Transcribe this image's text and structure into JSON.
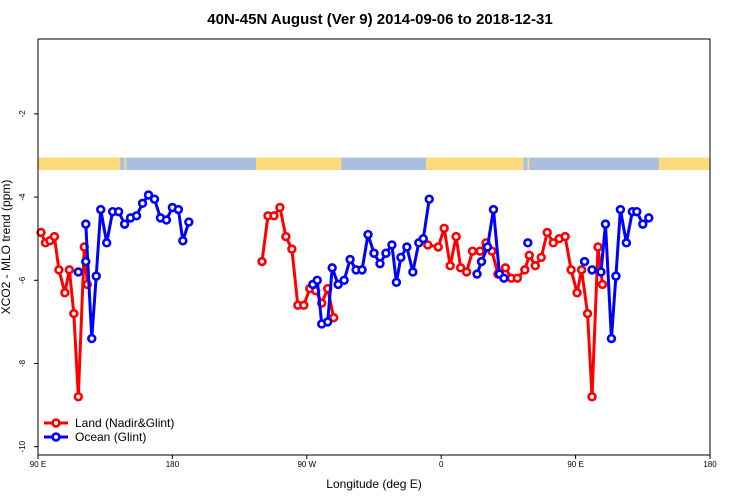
{
  "chart_data": {
    "type": "line",
    "title": "40N-45N August (Ver 9)   2014-09-06 to 2018-12-31",
    "xlabel": "Longitude (deg E)",
    "ylabel": "XCO2 - MLO trend (ppm)",
    "xlim": [
      0,
      450
    ],
    "ylim": [
      -10.2,
      -0.2
    ],
    "x_ticks": [
      {
        "value": 0,
        "label": "90 E"
      },
      {
        "value": 90,
        "label": "180"
      },
      {
        "value": 180,
        "label": "90 W"
      },
      {
        "value": 270,
        "label": "0"
      },
      {
        "value": 360,
        "label": "90 E"
      },
      {
        "value": 450,
        "label": "180"
      }
    ],
    "y_ticks": [
      -10,
      -8,
      -6,
      -4,
      -2
    ],
    "grid": false,
    "legend_position": "bottom-left",
    "land_mask_band": {
      "y_range": [
        -3.35,
        -3.05
      ],
      "land_color": "#ffd97a",
      "ocean_color": "#a9bfdd",
      "segments": [
        {
          "x0": 0,
          "x1": 55,
          "type": "land"
        },
        {
          "x0": 55,
          "x1": 58,
          "type": "ocean"
        },
        {
          "x0": 58,
          "x1": 59,
          "type": "land"
        },
        {
          "x0": 59,
          "x1": 146,
          "type": "ocean"
        },
        {
          "x0": 146,
          "x1": 203,
          "type": "land"
        },
        {
          "x0": 203,
          "x1": 260,
          "type": "ocean"
        },
        {
          "x0": 260,
          "x1": 325,
          "type": "land"
        },
        {
          "x0": 325,
          "x1": 328,
          "type": "ocean"
        },
        {
          "x0": 328,
          "x1": 329,
          "type": "land"
        },
        {
          "x0": 329,
          "x1": 416,
          "type": "ocean"
        },
        {
          "x0": 416,
          "x1": 450,
          "type": "land"
        }
      ]
    },
    "series": [
      {
        "name": "Land (Nadir&Glint)",
        "color": "#ff0000",
        "segments": [
          [
            [
              2,
              -4.85
            ],
            [
              5,
              -5.1
            ],
            [
              8,
              -5.05
            ],
            [
              11,
              -4.95
            ],
            [
              14,
              -5.75
            ],
            [
              18,
              -6.3
            ],
            [
              21,
              -5.75
            ],
            [
              24,
              -6.8
            ],
            [
              27,
              -8.8
            ],
            [
              31,
              -5.2
            ],
            [
              33,
              -6.1
            ]
          ],
          [
            [
              150,
              -5.55
            ],
            [
              154,
              -4.45
            ],
            [
              158,
              -4.45
            ],
            [
              162,
              -4.25
            ],
            [
              166,
              -4.95
            ],
            [
              170,
              -5.25
            ],
            [
              174,
              -6.6
            ],
            [
              178,
              -6.6
            ],
            [
              182,
              -6.2
            ],
            [
              186,
              -6.25
            ],
            [
              190,
              -6.55
            ],
            [
              194,
              -6.2
            ],
            [
              198,
              -6.9
            ]
          ],
          [
            [
              261,
              -5.15
            ],
            [
              268,
              -5.2
            ],
            [
              272,
              -4.75
            ],
            [
              276,
              -5.65
            ],
            [
              280,
              -4.95
            ],
            [
              283,
              -5.7
            ],
            [
              287,
              -5.8
            ],
            [
              291,
              -5.3
            ],
            [
              296,
              -5.3
            ],
            [
              300,
              -5.1
            ],
            [
              304,
              -5.3
            ],
            [
              308,
              -5.85
            ],
            [
              313,
              -5.7
            ],
            [
              317,
              -5.95
            ],
            [
              321,
              -5.95
            ],
            [
              326,
              -5.75
            ],
            [
              329,
              -5.4
            ],
            [
              333,
              -5.65
            ],
            [
              337,
              -5.45
            ],
            [
              341,
              -4.85
            ],
            [
              345,
              -5.1
            ],
            [
              349,
              -5.0
            ],
            [
              353,
              -4.95
            ],
            [
              357,
              -5.75
            ],
            [
              361,
              -6.3
            ],
            [
              364,
              -5.75
            ],
            [
              368,
              -6.8
            ],
            [
              371,
              -8.8
            ],
            [
              375,
              -5.2
            ],
            [
              378,
              -6.1
            ]
          ]
        ]
      },
      {
        "name": "Ocean (Glint)",
        "color": "#0000ff",
        "segments": [
          [
            [
              32,
              -4.65
            ],
            [
              36,
              -7.4
            ],
            [
              39,
              -5.9
            ],
            [
              42,
              -4.3
            ],
            [
              46,
              -5.1
            ],
            [
              50,
              -4.35
            ],
            [
              54,
              -4.35
            ],
            [
              58,
              -4.65
            ],
            [
              62,
              -4.5
            ],
            [
              66,
              -4.45
            ],
            [
              70,
              -4.15
            ],
            [
              74,
              -3.95
            ],
            [
              78,
              -4.05
            ],
            [
              82,
              -4.5
            ],
            [
              86,
              -4.55
            ],
            [
              90,
              -4.25
            ],
            [
              94,
              -4.3
            ],
            [
              97,
              -5.05
            ],
            [
              101,
              -4.6
            ]
          ],
          [
            [
              184,
              -6.1
            ],
            [
              187,
              -6.0
            ],
            [
              190,
              -7.05
            ],
            [
              194,
              -7.0
            ],
            [
              197,
              -5.7
            ],
            [
              201,
              -6.1
            ],
            [
              205,
              -6.0
            ],
            [
              209,
              -5.5
            ],
            [
              213,
              -5.75
            ],
            [
              217,
              -5.75
            ],
            [
              221,
              -4.9
            ],
            [
              225,
              -5.35
            ],
            [
              229,
              -5.6
            ],
            [
              233,
              -5.35
            ],
            [
              237,
              -5.15
            ],
            [
              240,
              -6.05
            ],
            [
              243,
              -5.45
            ],
            [
              247,
              -5.2
            ],
            [
              251,
              -5.8
            ],
            [
              255,
              -5.1
            ],
            [
              258,
              -5.0
            ],
            [
              262,
              -4.05
            ]
          ],
          [
            [
              294,
              -5.85
            ],
            [
              297,
              -5.55
            ],
            [
              301,
              -5.2
            ],
            [
              305,
              -4.3
            ],
            [
              309,
              -5.85
            ],
            [
              312,
              -5.95
            ]
          ],
          [
            [
              328,
              -5.1
            ]
          ],
          [
            [
              377,
              -5.8
            ],
            [
              380,
              -4.65
            ],
            [
              384,
              -7.4
            ],
            [
              387,
              -5.9
            ],
            [
              390,
              -4.3
            ],
            [
              394,
              -5.1
            ],
            [
              398,
              -4.35
            ],
            [
              401,
              -4.35
            ],
            [
              405,
              -4.65
            ],
            [
              409,
              -4.5
            ]
          ]
        ],
        "isolated_points": [
          [
            27,
            -5.8
          ],
          [
            32,
            -5.55
          ],
          [
            366,
            -5.55
          ],
          [
            371,
            -5.75
          ]
        ]
      }
    ]
  }
}
